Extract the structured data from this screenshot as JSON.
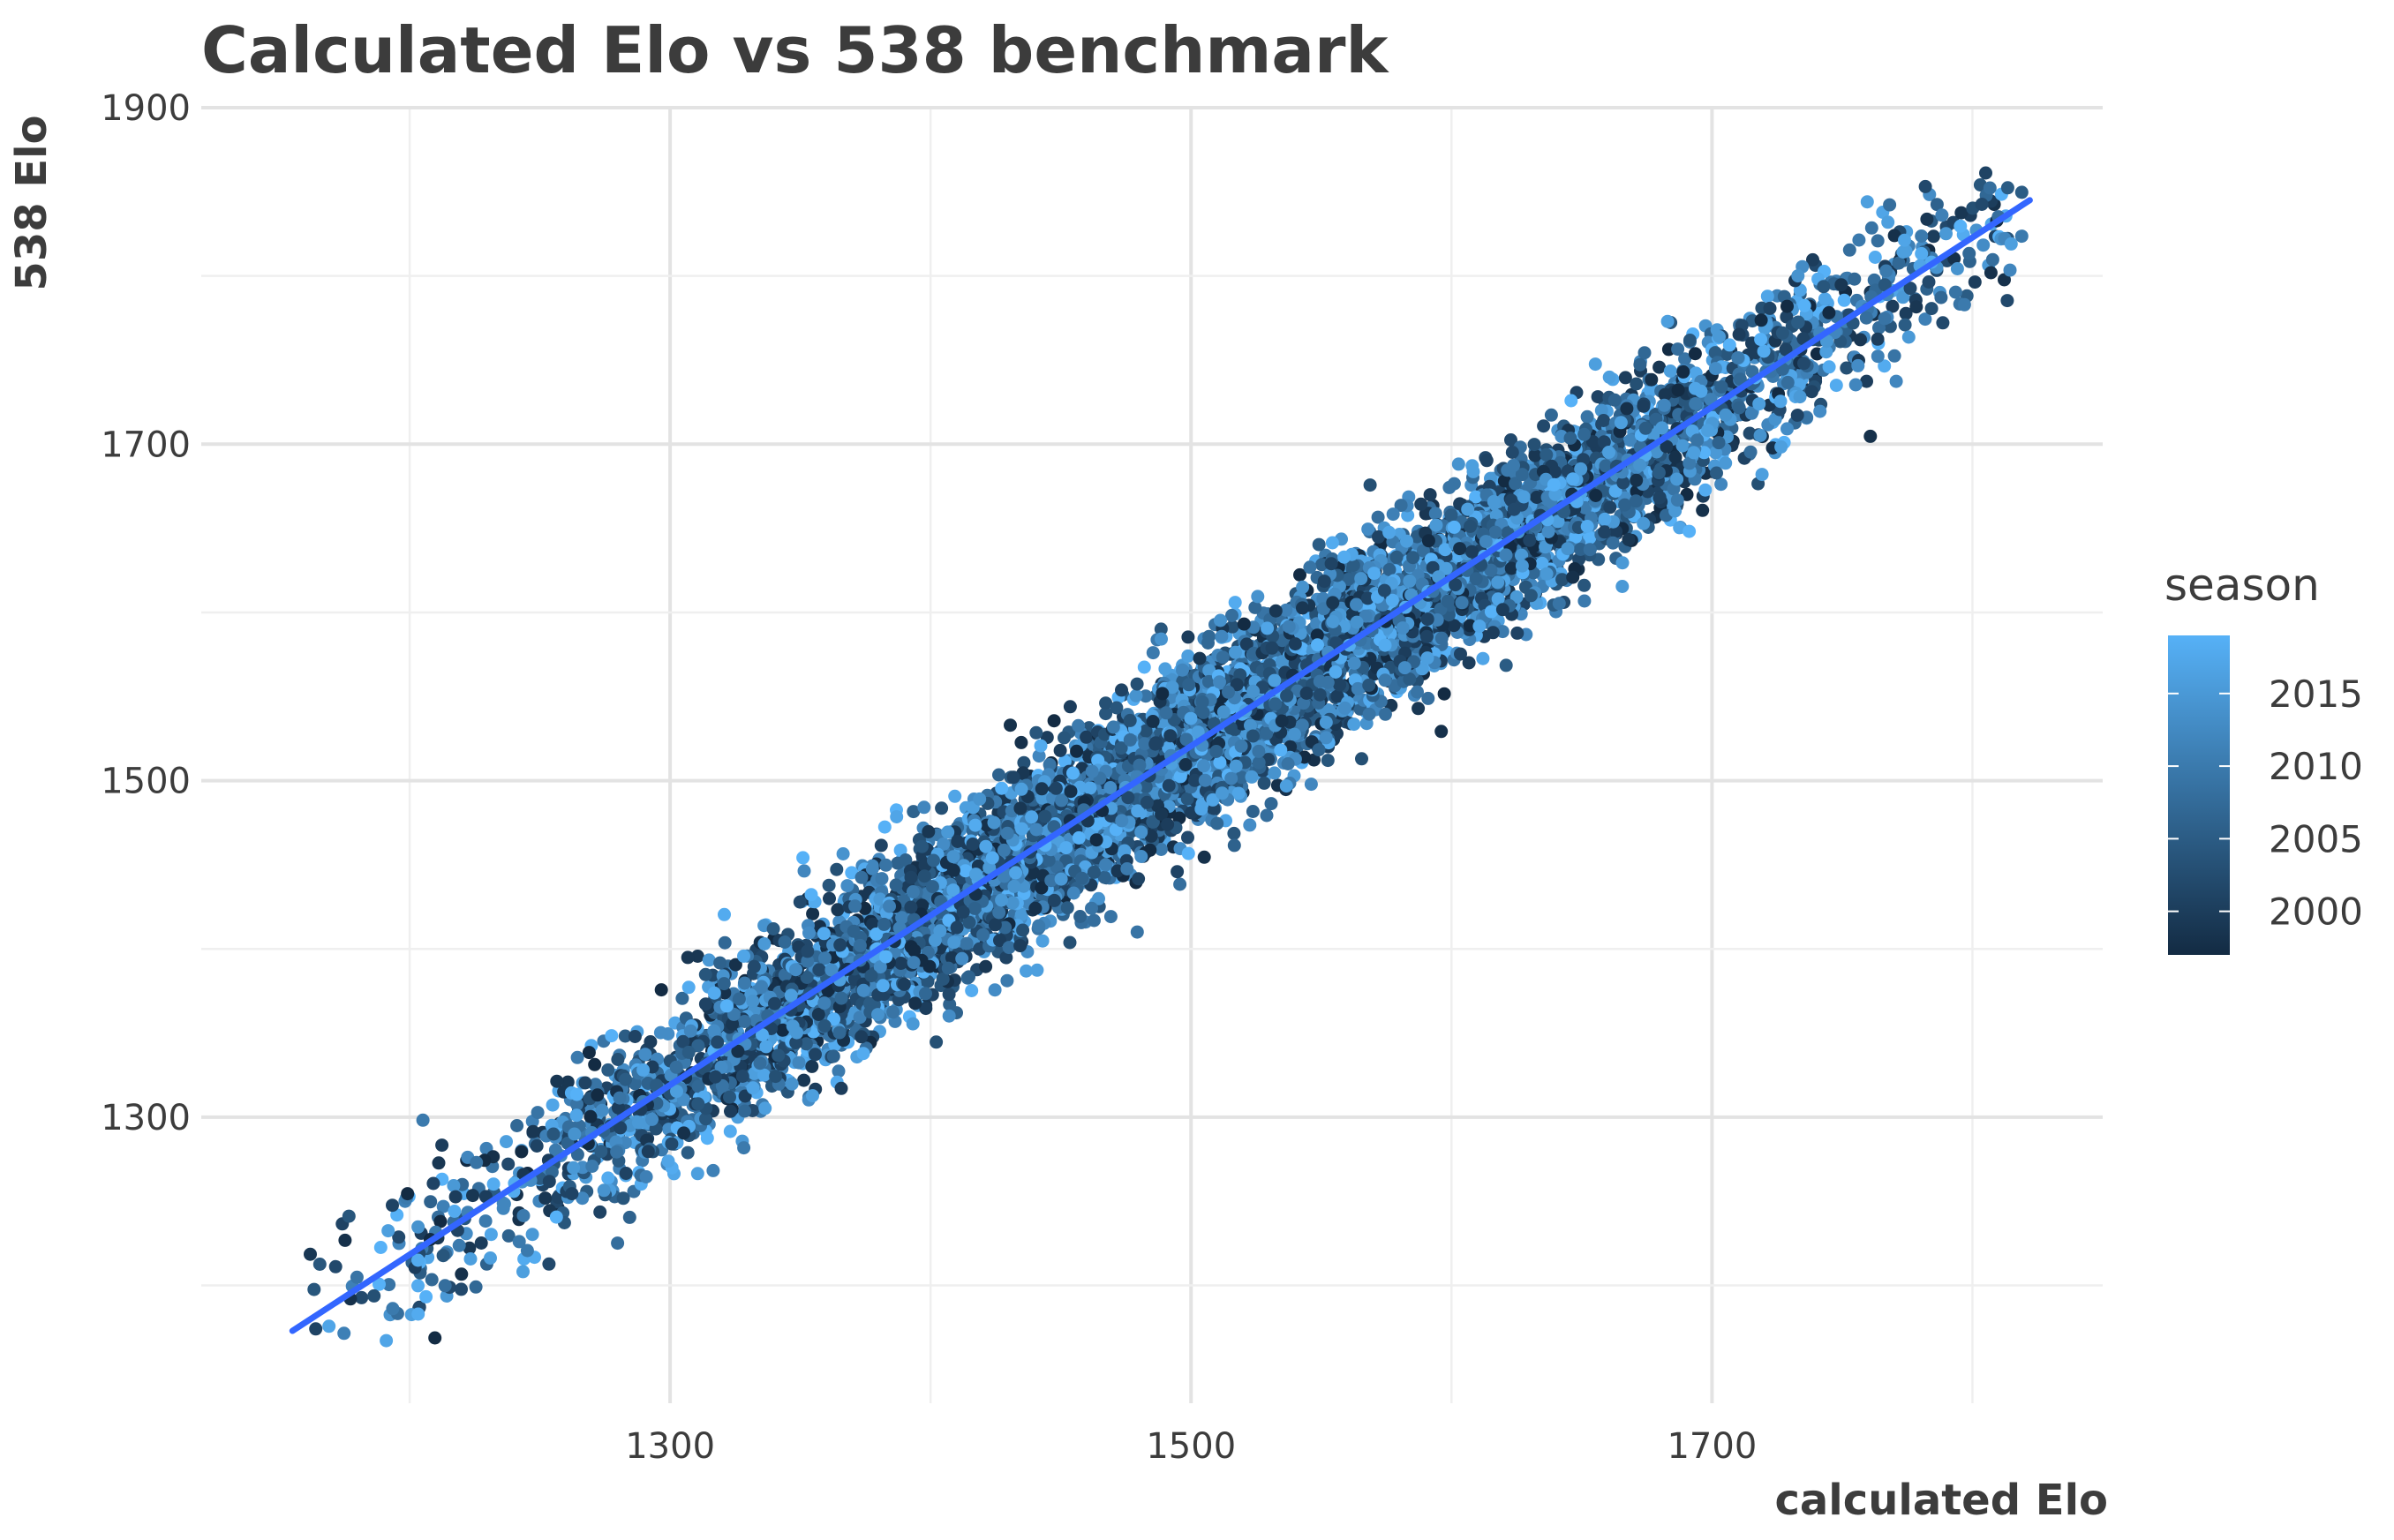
{
  "chart_data": {
    "type": "scatter",
    "title": "Calculated Elo vs 538 benchmark",
    "xlabel": "calculated Elo",
    "ylabel": "538 Elo",
    "xlim": [
      1120,
      1850
    ],
    "ylim": [
      1130,
      1900
    ],
    "x_ticks": [
      1300,
      1500,
      1700
    ],
    "y_ticks": [
      1300,
      1500,
      1700,
      1900
    ],
    "grid": true,
    "legend": {
      "title": "season",
      "position": "right",
      "type": "colorbar",
      "ticks": [
        2000,
        2005,
        2010,
        2015
      ],
      "range": [
        1997,
        2019
      ],
      "low_color": "#132B43",
      "high_color": "#56B1F7"
    },
    "trend_line": {
      "type": "linear-fit",
      "color": "#3366FF",
      "x": [
        1155,
        1822
      ],
      "y": [
        1173,
        1845
      ]
    },
    "point_cloud_summary": {
      "count_approx": 8000,
      "x_range": [
        1155,
        1822
      ],
      "y_range": [
        1160,
        1865
      ],
      "relationship": "y ≈ x"
    }
  }
}
